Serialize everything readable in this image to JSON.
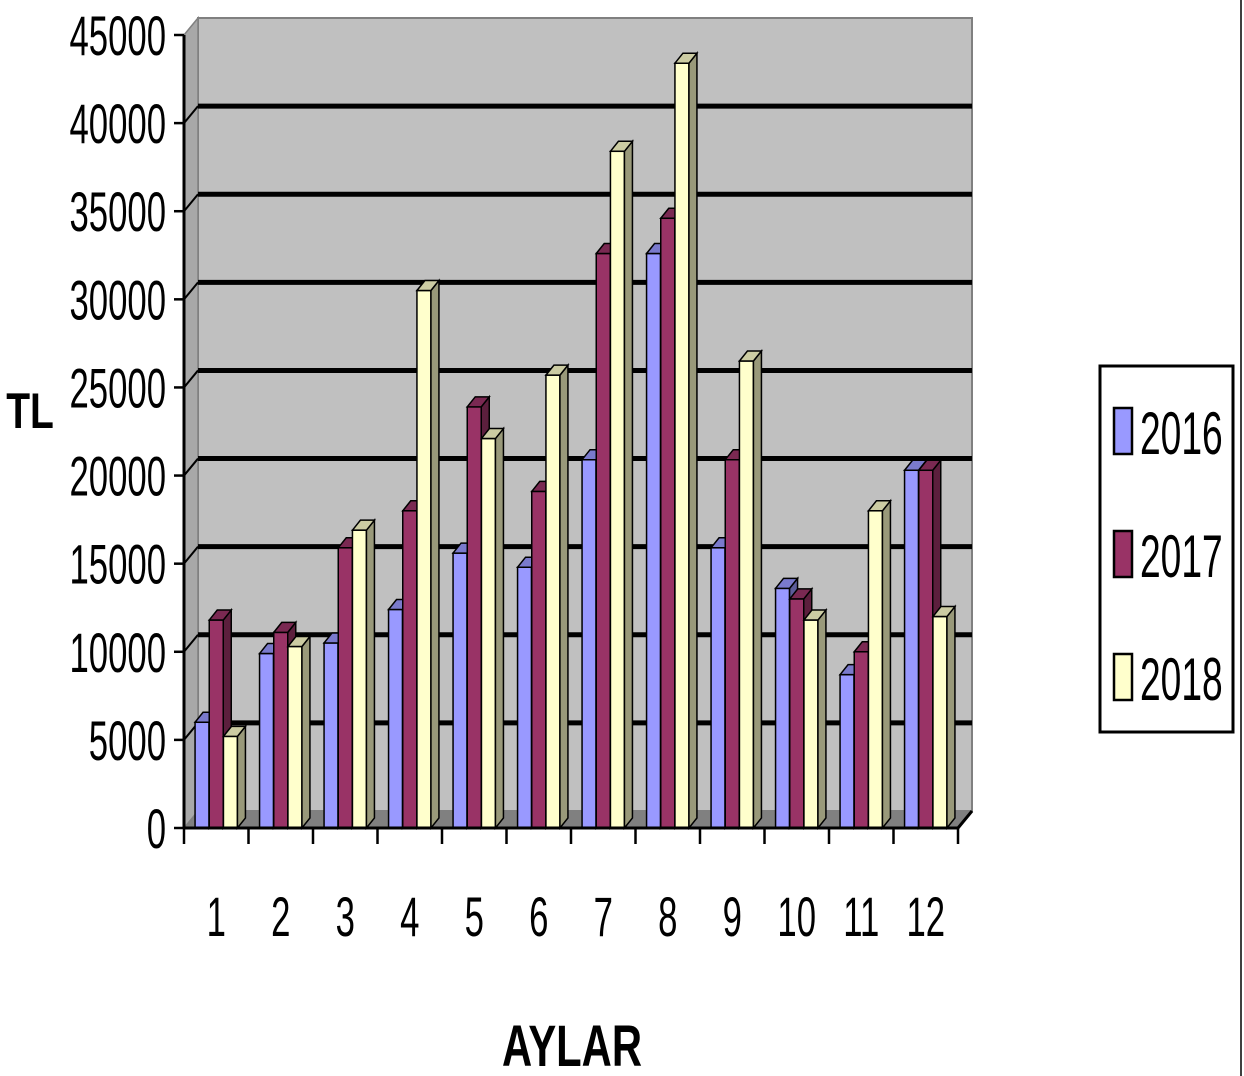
{
  "chart_data": {
    "type": "bar",
    "title": "",
    "xlabel": "AYLAR",
    "ylabel": "TL",
    "categories": [
      "1",
      "2",
      "3",
      "4",
      "5",
      "6",
      "7",
      "8",
      "9",
      "10",
      "11",
      "12"
    ],
    "series": [
      {
        "name": "2016",
        "color": "#9999ff",
        "values": [
          6000,
          9900,
          10500,
          12400,
          15600,
          14800,
          20900,
          32600,
          15900,
          13600,
          8700,
          20300
        ]
      },
      {
        "name": "2017",
        "color": "#993366",
        "values": [
          11800,
          11100,
          15900,
          18000,
          23900,
          19100,
          32600,
          34600,
          20900,
          13000,
          10000,
          20300
        ]
      },
      {
        "name": "2018",
        "color": "#ffffcc",
        "values": [
          5200,
          10300,
          16900,
          30500,
          22100,
          25700,
          38400,
          43400,
          26500,
          11800,
          18000,
          12000
        ]
      }
    ],
    "ylim": [
      0,
      45000
    ],
    "yticks": [
      0,
      5000,
      10000,
      15000,
      20000,
      25000,
      30000,
      35000,
      40000,
      45000
    ],
    "grid": true,
    "legend_position": "right",
    "background_color": "#c0c0c0"
  }
}
